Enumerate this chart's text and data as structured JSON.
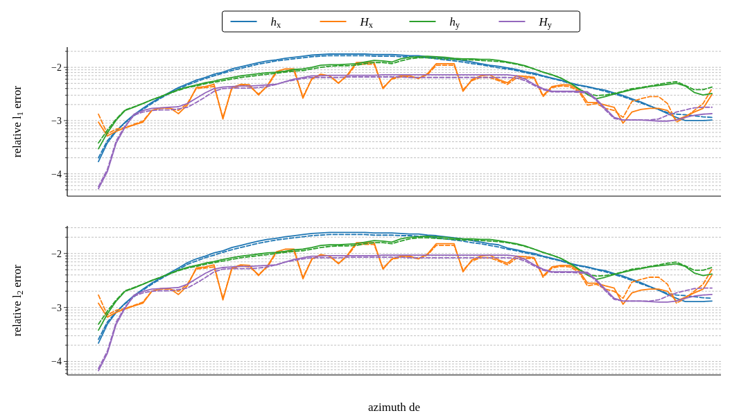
{
  "chart_data": [
    {
      "type": "line",
      "ylabel": "relative l$_{1}$ error",
      "legend": "top",
      "grid": "y",
      "ylim": [
        -4.42,
        -1.62
      ],
      "yticks": [
        {
          "value": -4.301,
          "label": null
        },
        {
          "value": -4.222,
          "label": null
        },
        {
          "value": -4.155,
          "label": null
        },
        {
          "value": -4.097,
          "label": null
        },
        {
          "value": -4.046,
          "label": null
        },
        {
          "value": -4,
          "label": "−4"
        },
        {
          "value": -3.699,
          "label": null
        },
        {
          "value": -3.523,
          "label": null
        },
        {
          "value": -3.398,
          "label": null
        },
        {
          "value": -3.301,
          "label": null
        },
        {
          "value": -3.222,
          "label": null
        },
        {
          "value": -3.155,
          "label": null
        },
        {
          "value": -3.097,
          "label": null
        },
        {
          "value": -3.046,
          "label": null
        },
        {
          "value": -3,
          "label": "−3"
        },
        {
          "value": -2.699,
          "label": null
        },
        {
          "value": -2.523,
          "label": null
        },
        {
          "value": -2.398,
          "label": null
        },
        {
          "value": -2.301,
          "label": null
        },
        {
          "value": -2.222,
          "label": null
        },
        {
          "value": -2.155,
          "label": null
        },
        {
          "value": -2.097,
          "label": null
        },
        {
          "value": -2.046,
          "label": null
        },
        {
          "value": -2,
          "label": "−2"
        },
        {
          "value": -1.699,
          "label": null
        }
      ],
      "categories": [
        null,
        null,
        null,
        null,
        null,
        null,
        null,
        null,
        null,
        null,
        null,
        null,
        null,
        null,
        null,
        null,
        null,
        null,
        null,
        null,
        null,
        null,
        null,
        null,
        null,
        null,
        null,
        null,
        null,
        null,
        null,
        null,
        null,
        null,
        null,
        null,
        null,
        null,
        null,
        null,
        null,
        null,
        null,
        null,
        null,
        null,
        null,
        null,
        null,
        null,
        null,
        null,
        null,
        null,
        null,
        null,
        null,
        null,
        null,
        null,
        null,
        null,
        null,
        null,
        null,
        null,
        null,
        null,
        null,
        null
      ],
      "series": [
        {
          "name": "h$_{x}$",
          "color": "#1f77b4",
          "values": [
            -3.77,
            -3.42,
            -3.2,
            -3.03,
            -2.89,
            -2.77,
            -2.66,
            -2.56,
            -2.47,
            -2.38,
            -2.31,
            -2.24,
            -2.19,
            -2.13,
            -2.09,
            -2.03,
            -1.99,
            -1.95,
            -1.91,
            -1.88,
            -1.86,
            -1.83,
            -1.81,
            -1.79,
            -1.77,
            -1.76,
            -1.75,
            -1.75,
            -1.75,
            -1.75,
            -1.75,
            -1.76,
            -1.76,
            -1.76,
            -1.77,
            -1.78,
            -1.78,
            -1.8,
            -1.81,
            -1.83,
            -1.85,
            -1.87,
            -1.9,
            -1.93,
            -1.96,
            -1.98,
            -2.01,
            -2.04,
            -2.08,
            -2.11,
            -2.16,
            -2.2,
            -2.24,
            -2.29,
            -2.33,
            -2.36,
            -2.4,
            -2.43,
            -2.48,
            -2.53,
            -2.59,
            -2.65,
            -2.72,
            -2.79,
            -2.87,
            -2.94,
            -3.0,
            -3.0,
            -3.0,
            -2.99
          ]
        },
        {
          "color": "#1f77b4",
          "line_style": "dashed",
          "values": [
            -3.7,
            -3.38,
            -3.19,
            -3.04,
            -2.91,
            -2.79,
            -2.68,
            -2.58,
            -2.49,
            -2.41,
            -2.33,
            -2.27,
            -2.21,
            -2.16,
            -2.11,
            -2.06,
            -2.02,
            -1.98,
            -1.94,
            -1.91,
            -1.88,
            -1.86,
            -1.84,
            -1.82,
            -1.8,
            -1.79,
            -1.78,
            -1.78,
            -1.78,
            -1.78,
            -1.78,
            -1.79,
            -1.79,
            -1.79,
            -1.8,
            -1.8,
            -1.81,
            -1.82,
            -1.84,
            -1.86,
            -1.88,
            -1.9,
            -1.93,
            -1.95,
            -1.98,
            -2.01,
            -2.03,
            -2.06,
            -2.1,
            -2.13,
            -2.17,
            -2.21,
            -2.25,
            -2.3,
            -2.34,
            -2.37,
            -2.41,
            -2.45,
            -2.5,
            -2.55,
            -2.61,
            -2.67,
            -2.73,
            -2.79,
            -2.85,
            -2.88,
            -2.89,
            -2.91,
            -2.93,
            -2.94
          ]
        },
        {
          "name": "H$_{x}$",
          "color": "#ff7f0e",
          "values": [
            -3.03,
            -3.29,
            -3.2,
            -3.14,
            -3.08,
            -3.03,
            -2.81,
            -2.76,
            -2.76,
            -2.87,
            -2.71,
            -2.38,
            -2.36,
            -2.32,
            -2.97,
            -2.38,
            -2.32,
            -2.33,
            -2.52,
            -2.34,
            -2.08,
            -2.03,
            -2.03,
            -2.58,
            -2.21,
            -2.13,
            -2.16,
            -2.3,
            -2.14,
            -1.91,
            -1.91,
            -1.91,
            -2.4,
            -2.21,
            -2.16,
            -2.16,
            -2.21,
            -2.12,
            -1.93,
            -1.93,
            -1.93,
            -2.45,
            -2.23,
            -2.16,
            -2.14,
            -2.23,
            -2.29,
            -2.16,
            -2.17,
            -2.19,
            -2.53,
            -2.36,
            -2.33,
            -2.33,
            -2.42,
            -2.66,
            -2.66,
            -2.71,
            -2.75,
            -3.05,
            -2.84,
            -2.79,
            -2.77,
            -2.77,
            -2.81,
            -2.99,
            -2.92,
            -2.84,
            -2.77,
            -2.51
          ]
        },
        {
          "color": "#ff7f0e",
          "line_style": "dashed",
          "values": [
            -2.88,
            -3.25,
            -3.16,
            -3.13,
            -3.07,
            -3.01,
            -2.81,
            -2.77,
            -2.77,
            -2.81,
            -2.68,
            -2.4,
            -2.38,
            -2.36,
            -2.94,
            -2.4,
            -2.34,
            -2.36,
            -2.5,
            -2.36,
            -2.1,
            -2.07,
            -2.07,
            -2.55,
            -2.22,
            -2.14,
            -2.16,
            -2.29,
            -2.16,
            -1.94,
            -1.94,
            -1.94,
            -2.38,
            -2.22,
            -2.18,
            -2.18,
            -2.2,
            -2.14,
            -1.96,
            -1.96,
            -1.96,
            -2.42,
            -2.25,
            -2.19,
            -2.19,
            -2.25,
            -2.32,
            -2.2,
            -2.2,
            -2.2,
            -2.55,
            -2.38,
            -2.35,
            -2.36,
            -2.45,
            -2.71,
            -2.68,
            -2.77,
            -2.81,
            -2.94,
            -2.64,
            -2.59,
            -2.55,
            -2.55,
            -2.68,
            -3.03,
            -2.94,
            -2.81,
            -2.68,
            -2.4
          ]
        },
        {
          "name": "h$_{y}$",
          "color": "#2ca02c",
          "values": [
            -3.53,
            -3.23,
            -2.99,
            -2.81,
            -2.75,
            -2.68,
            -2.61,
            -2.55,
            -2.48,
            -2.42,
            -2.37,
            -2.33,
            -2.29,
            -2.26,
            -2.22,
            -2.19,
            -2.16,
            -2.14,
            -2.12,
            -2.1,
            -2.09,
            -2.07,
            -2.04,
            -2.03,
            -2.0,
            -1.96,
            -1.95,
            -1.95,
            -1.94,
            -1.93,
            -1.9,
            -1.87,
            -1.88,
            -1.9,
            -1.84,
            -1.81,
            -1.8,
            -1.79,
            -1.8,
            -1.81,
            -1.83,
            -1.84,
            -1.84,
            -1.85,
            -1.85,
            -1.87,
            -1.9,
            -1.93,
            -1.97,
            -2.03,
            -2.09,
            -2.14,
            -2.2,
            -2.29,
            -2.4,
            -2.51,
            -2.59,
            -2.55,
            -2.5,
            -2.46,
            -2.42,
            -2.39,
            -2.36,
            -2.34,
            -2.32,
            -2.3,
            -2.35,
            -2.47,
            -2.52,
            -2.49
          ]
        },
        {
          "color": "#2ca02c",
          "line_style": "dashed",
          "values": [
            -3.42,
            -3.18,
            -2.97,
            -2.8,
            -2.74,
            -2.68,
            -2.61,
            -2.55,
            -2.49,
            -2.43,
            -2.38,
            -2.35,
            -2.31,
            -2.28,
            -2.25,
            -2.22,
            -2.19,
            -2.17,
            -2.15,
            -2.13,
            -2.11,
            -2.09,
            -2.07,
            -2.06,
            -2.03,
            -2.0,
            -1.98,
            -1.97,
            -1.97,
            -1.96,
            -1.93,
            -1.91,
            -1.91,
            -1.93,
            -1.88,
            -1.84,
            -1.82,
            -1.82,
            -1.83,
            -1.84,
            -1.85,
            -1.86,
            -1.86,
            -1.87,
            -1.88,
            -1.89,
            -1.91,
            -1.94,
            -1.98,
            -2.03,
            -2.09,
            -2.14,
            -2.2,
            -2.29,
            -2.4,
            -2.49,
            -2.53,
            -2.52,
            -2.49,
            -2.45,
            -2.4,
            -2.38,
            -2.35,
            -2.32,
            -2.29,
            -2.27,
            -2.34,
            -2.42,
            -2.42,
            -2.37
          ]
        },
        {
          "name": "H$_{y}$",
          "color": "#9467bd",
          "values": [
            -4.28,
            -3.96,
            -3.42,
            -3.12,
            -2.88,
            -2.81,
            -2.77,
            -2.76,
            -2.75,
            -2.74,
            -2.68,
            -2.58,
            -2.48,
            -2.4,
            -2.37,
            -2.36,
            -2.35,
            -2.35,
            -2.34,
            -2.33,
            -2.32,
            -2.27,
            -2.22,
            -2.19,
            -2.16,
            -2.16,
            -2.15,
            -2.15,
            -2.15,
            -2.15,
            -2.15,
            -2.15,
            -2.14,
            -2.14,
            -2.14,
            -2.14,
            -2.14,
            -2.14,
            -2.14,
            -2.14,
            -2.14,
            -2.14,
            -2.14,
            -2.14,
            -2.14,
            -2.14,
            -2.14,
            -2.16,
            -2.22,
            -2.32,
            -2.4,
            -2.45,
            -2.45,
            -2.45,
            -2.45,
            -2.46,
            -2.6,
            -2.77,
            -2.94,
            -2.99,
            -2.99,
            -2.99,
            -3.0,
            -3.01,
            -3.01,
            -2.99,
            -2.94,
            -2.9,
            -2.88,
            -2.87
          ]
        },
        {
          "color": "#9467bd",
          "line_style": "dashed",
          "values": [
            -4.24,
            -3.92,
            -3.38,
            -3.1,
            -2.9,
            -2.84,
            -2.81,
            -2.8,
            -2.8,
            -2.78,
            -2.75,
            -2.66,
            -2.56,
            -2.45,
            -2.4,
            -2.39,
            -2.39,
            -2.39,
            -2.38,
            -2.36,
            -2.32,
            -2.27,
            -2.24,
            -2.21,
            -2.19,
            -2.19,
            -2.19,
            -2.19,
            -2.18,
            -2.18,
            -2.18,
            -2.18,
            -2.18,
            -2.18,
            -2.18,
            -2.19,
            -2.19,
            -2.19,
            -2.19,
            -2.19,
            -2.19,
            -2.19,
            -2.19,
            -2.19,
            -2.19,
            -2.19,
            -2.19,
            -2.2,
            -2.25,
            -2.34,
            -2.42,
            -2.46,
            -2.46,
            -2.46,
            -2.47,
            -2.48,
            -2.62,
            -2.8,
            -2.96,
            -2.99,
            -2.99,
            -2.99,
            -2.99,
            -2.97,
            -2.9,
            -2.84,
            -2.8,
            -2.76,
            -2.75,
            -2.75
          ]
        }
      ]
    },
    {
      "type": "line",
      "ylabel": "relative l$_{2}$ error",
      "xlabel": "azimuth de",
      "grid": "y",
      "ylim": [
        -4.25,
        -1.49
      ],
      "yticks": [
        {
          "value": -4.222,
          "label": null
        },
        {
          "value": -4.155,
          "label": null
        },
        {
          "value": -4.097,
          "label": null
        },
        {
          "value": -4.046,
          "label": null
        },
        {
          "value": -4,
          "label": "−4"
        },
        {
          "value": -3.699,
          "label": null
        },
        {
          "value": -3.523,
          "label": null
        },
        {
          "value": -3.398,
          "label": null
        },
        {
          "value": -3.301,
          "label": null
        },
        {
          "value": -3.222,
          "label": null
        },
        {
          "value": -3.155,
          "label": null
        },
        {
          "value": -3.097,
          "label": null
        },
        {
          "value": -3.046,
          "label": null
        },
        {
          "value": -3,
          "label": "−3"
        },
        {
          "value": -2.699,
          "label": null
        },
        {
          "value": -2.523,
          "label": null
        },
        {
          "value": -2.398,
          "label": null
        },
        {
          "value": -2.301,
          "label": null
        },
        {
          "value": -2.222,
          "label": null
        },
        {
          "value": -2.155,
          "label": null
        },
        {
          "value": -2.097,
          "label": null
        },
        {
          "value": -2.046,
          "label": null
        },
        {
          "value": -2,
          "label": "−2"
        },
        {
          "value": -1.699,
          "label": null
        },
        {
          "value": -1.523,
          "label": null
        }
      ],
      "categories": [
        null,
        null,
        null,
        null,
        null,
        null,
        null,
        null,
        null,
        null,
        null,
        null,
        null,
        null,
        null,
        null,
        null,
        null,
        null,
        null,
        null,
        null,
        null,
        null,
        null,
        null,
        null,
        null,
        null,
        null,
        null,
        null,
        null,
        null,
        null,
        null,
        null,
        null,
        null,
        null,
        null,
        null,
        null,
        null,
        null,
        null,
        null,
        null,
        null,
        null,
        null,
        null,
        null,
        null,
        null,
        null,
        null,
        null,
        null,
        null,
        null,
        null,
        null,
        null,
        null,
        null,
        null,
        null,
        null,
        null
      ],
      "series": [
        {
          "color": "#1f77b4",
          "values": [
            -3.66,
            -3.31,
            -3.09,
            -2.92,
            -2.78,
            -2.66,
            -2.55,
            -2.45,
            -2.36,
            -2.27,
            -2.17,
            -2.1,
            -2.05,
            -1.99,
            -1.95,
            -1.89,
            -1.85,
            -1.81,
            -1.77,
            -1.74,
            -1.72,
            -1.69,
            -1.67,
            -1.65,
            -1.63,
            -1.62,
            -1.61,
            -1.61,
            -1.61,
            -1.61,
            -1.61,
            -1.62,
            -1.62,
            -1.62,
            -1.63,
            -1.64,
            -1.64,
            -1.66,
            -1.67,
            -1.69,
            -1.71,
            -1.73,
            -1.76,
            -1.79,
            -1.82,
            -1.84,
            -1.9,
            -1.93,
            -1.97,
            -2.0,
            -2.05,
            -2.09,
            -2.13,
            -2.18,
            -2.22,
            -2.25,
            -2.29,
            -2.32,
            -2.37,
            -2.42,
            -2.48,
            -2.54,
            -2.61,
            -2.68,
            -2.76,
            -2.83,
            -2.89,
            -2.89,
            -2.89,
            -2.88
          ]
        },
        {
          "color": "#1f77b4",
          "line_style": "dashed",
          "values": [
            -3.59,
            -3.27,
            -3.08,
            -2.93,
            -2.8,
            -2.68,
            -2.57,
            -2.47,
            -2.38,
            -2.3,
            -2.2,
            -2.14,
            -2.08,
            -2.03,
            -1.98,
            -1.93,
            -1.89,
            -1.85,
            -1.81,
            -1.78,
            -1.75,
            -1.73,
            -1.71,
            -1.69,
            -1.67,
            -1.66,
            -1.65,
            -1.65,
            -1.65,
            -1.65,
            -1.65,
            -1.66,
            -1.66,
            -1.66,
            -1.67,
            -1.67,
            -1.68,
            -1.69,
            -1.71,
            -1.73,
            -1.75,
            -1.77,
            -1.8,
            -1.82,
            -1.85,
            -1.88,
            -1.92,
            -1.95,
            -1.99,
            -2.02,
            -2.06,
            -2.1,
            -2.14,
            -2.19,
            -2.23,
            -2.26,
            -2.3,
            -2.34,
            -2.39,
            -2.44,
            -2.5,
            -2.56,
            -2.62,
            -2.68,
            -2.74,
            -2.77,
            -2.78,
            -2.8,
            -2.82,
            -2.83
          ]
        },
        {
          "color": "#ff7f0e",
          "values": [
            -2.92,
            -3.18,
            -3.09,
            -3.03,
            -2.97,
            -2.92,
            -2.7,
            -2.65,
            -2.65,
            -2.76,
            -2.6,
            -2.27,
            -2.25,
            -2.21,
            -2.86,
            -2.27,
            -2.21,
            -2.22,
            -2.41,
            -2.23,
            -1.97,
            -1.92,
            -1.92,
            -2.47,
            -2.1,
            -2.02,
            -2.05,
            -2.19,
            -2.03,
            -1.8,
            -1.8,
            -1.8,
            -2.29,
            -2.1,
            -2.05,
            -2.05,
            -2.1,
            -2.01,
            -1.82,
            -1.82,
            -1.82,
            -2.34,
            -2.12,
            -2.05,
            -2.03,
            -2.12,
            -2.18,
            -2.05,
            -2.06,
            -2.08,
            -2.42,
            -2.25,
            -2.22,
            -2.22,
            -2.31,
            -2.55,
            -2.55,
            -2.6,
            -2.64,
            -2.94,
            -2.73,
            -2.68,
            -2.66,
            -2.66,
            -2.7,
            -2.88,
            -2.81,
            -2.73,
            -2.66,
            -2.4
          ]
        },
        {
          "color": "#ff7f0e",
          "line_style": "dashed",
          "values": [
            -2.77,
            -3.14,
            -3.05,
            -3.02,
            -2.96,
            -2.9,
            -2.7,
            -2.66,
            -2.66,
            -2.7,
            -2.57,
            -2.29,
            -2.27,
            -2.25,
            -2.83,
            -2.29,
            -2.23,
            -2.25,
            -2.39,
            -2.25,
            -1.99,
            -1.96,
            -1.96,
            -2.44,
            -2.11,
            -2.03,
            -2.05,
            -2.18,
            -2.05,
            -1.83,
            -1.83,
            -1.83,
            -2.27,
            -2.11,
            -2.07,
            -2.07,
            -2.09,
            -2.03,
            -1.85,
            -1.85,
            -1.85,
            -2.31,
            -2.14,
            -2.08,
            -2.08,
            -2.14,
            -2.21,
            -2.09,
            -2.09,
            -2.09,
            -2.44,
            -2.27,
            -2.24,
            -2.25,
            -2.34,
            -2.6,
            -2.57,
            -2.66,
            -2.7,
            -2.83,
            -2.53,
            -2.48,
            -2.44,
            -2.44,
            -2.57,
            -2.92,
            -2.83,
            -2.7,
            -2.57,
            -2.29
          ]
        },
        {
          "color": "#2ca02c",
          "values": [
            -3.42,
            -3.12,
            -2.88,
            -2.7,
            -2.64,
            -2.57,
            -2.5,
            -2.44,
            -2.37,
            -2.31,
            -2.26,
            -2.22,
            -2.18,
            -2.15,
            -2.11,
            -2.08,
            -2.05,
            -2.03,
            -2.01,
            -1.99,
            -1.98,
            -1.96,
            -1.93,
            -1.92,
            -1.89,
            -1.85,
            -1.84,
            -1.84,
            -1.83,
            -1.82,
            -1.79,
            -1.76,
            -1.77,
            -1.79,
            -1.73,
            -1.7,
            -1.69,
            -1.68,
            -1.69,
            -1.7,
            -1.72,
            -1.73,
            -1.73,
            -1.74,
            -1.74,
            -1.76,
            -1.79,
            -1.82,
            -1.86,
            -1.92,
            -1.98,
            -2.03,
            -2.09,
            -2.18,
            -2.29,
            -2.4,
            -2.48,
            -2.44,
            -2.39,
            -2.35,
            -2.31,
            -2.28,
            -2.25,
            -2.23,
            -2.21,
            -2.19,
            -2.24,
            -2.36,
            -2.41,
            -2.38
          ]
        },
        {
          "color": "#2ca02c",
          "line_style": "dashed",
          "values": [
            -3.31,
            -3.07,
            -2.86,
            -2.69,
            -2.63,
            -2.57,
            -2.5,
            -2.44,
            -2.38,
            -2.32,
            -2.27,
            -2.24,
            -2.2,
            -2.17,
            -2.14,
            -2.11,
            -2.08,
            -2.06,
            -2.04,
            -2.02,
            -2.0,
            -1.98,
            -1.96,
            -1.95,
            -1.92,
            -1.89,
            -1.87,
            -1.86,
            -1.86,
            -1.85,
            -1.82,
            -1.8,
            -1.8,
            -1.82,
            -1.77,
            -1.73,
            -1.71,
            -1.71,
            -1.72,
            -1.73,
            -1.74,
            -1.75,
            -1.75,
            -1.76,
            -1.77,
            -1.78,
            -1.8,
            -1.83,
            -1.87,
            -1.92,
            -1.98,
            -2.03,
            -2.09,
            -2.18,
            -2.29,
            -2.38,
            -2.42,
            -2.41,
            -2.38,
            -2.34,
            -2.29,
            -2.27,
            -2.24,
            -2.21,
            -2.18,
            -2.16,
            -2.23,
            -2.31,
            -2.31,
            -2.26
          ]
        },
        {
          "color": "#9467bd",
          "values": [
            -4.17,
            -3.85,
            -3.31,
            -3.01,
            -2.77,
            -2.7,
            -2.66,
            -2.65,
            -2.64,
            -2.63,
            -2.57,
            -2.47,
            -2.37,
            -2.29,
            -2.26,
            -2.25,
            -2.24,
            -2.24,
            -2.23,
            -2.22,
            -2.21,
            -2.16,
            -2.11,
            -2.08,
            -2.05,
            -2.05,
            -2.04,
            -2.04,
            -2.04,
            -2.04,
            -2.04,
            -2.04,
            -2.03,
            -2.03,
            -2.03,
            -2.03,
            -2.03,
            -2.03,
            -2.03,
            -2.03,
            -2.03,
            -2.03,
            -2.03,
            -2.03,
            -2.03,
            -2.03,
            -2.03,
            -2.05,
            -2.11,
            -2.21,
            -2.29,
            -2.34,
            -2.34,
            -2.34,
            -2.34,
            -2.35,
            -2.49,
            -2.66,
            -2.83,
            -2.88,
            -2.88,
            -2.88,
            -2.89,
            -2.9,
            -2.9,
            -2.88,
            -2.83,
            -2.79,
            -2.77,
            -2.76
          ]
        },
        {
          "color": "#9467bd",
          "line_style": "dashed",
          "values": [
            -4.13,
            -3.81,
            -3.27,
            -2.99,
            -2.79,
            -2.73,
            -2.7,
            -2.69,
            -2.69,
            -2.67,
            -2.64,
            -2.55,
            -2.45,
            -2.34,
            -2.29,
            -2.28,
            -2.28,
            -2.28,
            -2.27,
            -2.25,
            -2.21,
            -2.16,
            -2.13,
            -2.1,
            -2.08,
            -2.08,
            -2.08,
            -2.08,
            -2.07,
            -2.07,
            -2.07,
            -2.07,
            -2.07,
            -2.07,
            -2.07,
            -2.08,
            -2.08,
            -2.08,
            -2.08,
            -2.08,
            -2.08,
            -2.08,
            -2.08,
            -2.08,
            -2.08,
            -2.08,
            -2.08,
            -2.09,
            -2.14,
            -2.23,
            -2.31,
            -2.35,
            -2.35,
            -2.35,
            -2.36,
            -2.37,
            -2.51,
            -2.69,
            -2.85,
            -2.88,
            -2.88,
            -2.88,
            -2.88,
            -2.86,
            -2.79,
            -2.73,
            -2.69,
            -2.65,
            -2.64,
            -2.64
          ]
        }
      ]
    }
  ]
}
